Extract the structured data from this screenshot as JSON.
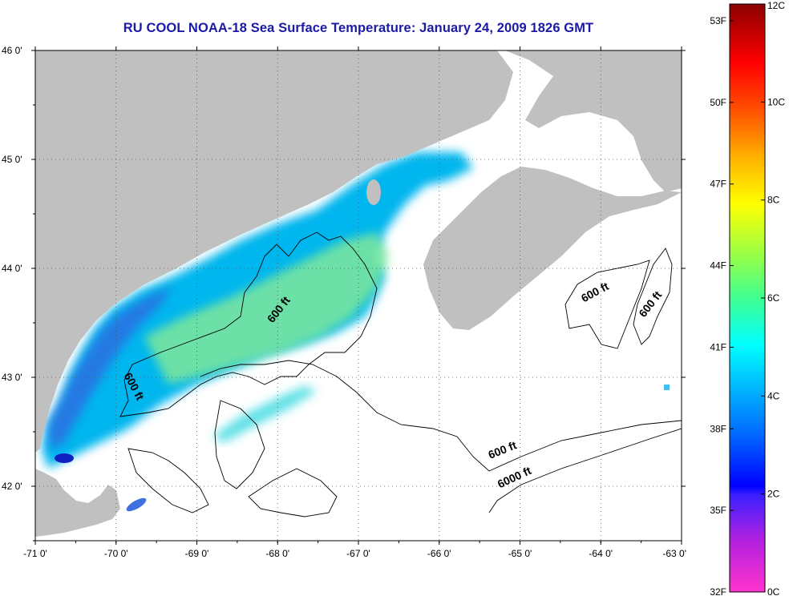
{
  "title": "RU COOL  NOAA-18  Sea Surface Temperature:  January 24, 2009 1826 GMT",
  "map": {
    "lon_range": [
      -71,
      -63
    ],
    "lat_range": [
      41.5,
      46
    ],
    "lon_ticks": [
      {
        "value": -71,
        "label": "-71 0'"
      },
      {
        "value": -70,
        "label": "-70 0'"
      },
      {
        "value": -69,
        "label": "-69 0'"
      },
      {
        "value": -68,
        "label": "-68 0'"
      },
      {
        "value": -67,
        "label": "-67 0'"
      },
      {
        "value": -66,
        "label": "-66 0'"
      },
      {
        "value": -65,
        "label": "-65 0'"
      },
      {
        "value": -64,
        "label": "-64 0'"
      },
      {
        "value": -63,
        "label": "-63 0'"
      }
    ],
    "lat_ticks": [
      {
        "value": 46,
        "label": "46 0'"
      },
      {
        "value": 45,
        "label": "45 0'"
      },
      {
        "value": 44,
        "label": "44 0'"
      },
      {
        "value": 43,
        "label": "43 0'"
      },
      {
        "value": 42,
        "label": "42 0'"
      }
    ],
    "land_color": "#c0c0c0",
    "grid": "dotted",
    "contour_labels": [
      {
        "text": "600 ft",
        "lon": -67.95,
        "lat": 43.6,
        "angle": -52
      },
      {
        "text": "600 ft",
        "lon": -69.82,
        "lat": 42.9,
        "angle": 62
      },
      {
        "text": "600 ft",
        "lon": -64.05,
        "lat": 43.75,
        "angle": -28
      },
      {
        "text": "600 ft",
        "lon": -63.35,
        "lat": 43.65,
        "angle": -52
      },
      {
        "text": "600 ft",
        "lon": -65.2,
        "lat": 42.3,
        "angle": -22
      },
      {
        "text": "6000 ft",
        "lon": -65.05,
        "lat": 42.05,
        "angle": -25
      }
    ]
  },
  "colorbar": {
    "fahrenheit_labels": [
      "53F",
      "50F",
      "47F",
      "44F",
      "41F",
      "38F",
      "35F",
      "32F"
    ],
    "celsius_labels": [
      "12C",
      "10C",
      "8C",
      "6C",
      "4C",
      "2C",
      "0C"
    ],
    "colors": [
      "#ff33cc",
      "#8a2be2",
      "#0000ff",
      "#00a0ff",
      "#00ffff",
      "#80ff80",
      "#ffff00",
      "#ff9900",
      "#ff0000",
      "#8b0000"
    ]
  }
}
